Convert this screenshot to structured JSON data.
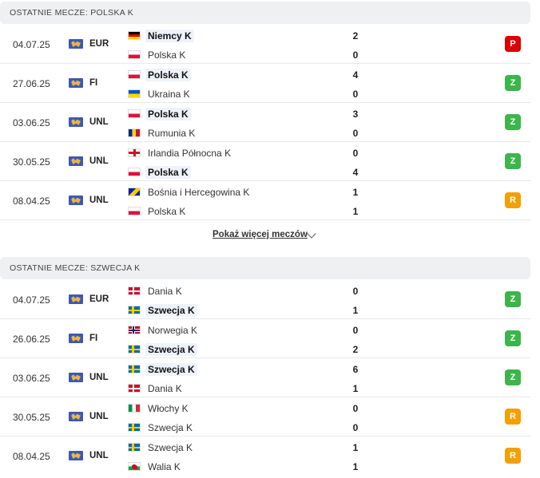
{
  "colors": {
    "loss": "#dc0000",
    "win": "#3cb54a",
    "draw": "#f3a000"
  },
  "sections": [
    {
      "title": "OSTATNIE MECZE: POLSKA K",
      "matches": [
        {
          "date": "04.07.25",
          "competition": "EUR",
          "home": {
            "name": "Niemcy K",
            "flag": "germany-flag-icon",
            "score": "2",
            "winner": true
          },
          "away": {
            "name": "Polska K",
            "flag": "poland-flag-icon",
            "score": "0",
            "winner": false
          },
          "result": "P",
          "result_type": "loss"
        },
        {
          "date": "27.06.25",
          "competition": "FI",
          "home": {
            "name": "Polska K",
            "flag": "poland-flag-icon",
            "score": "4",
            "winner": true
          },
          "away": {
            "name": "Ukraina K",
            "flag": "ukraine-flag-icon",
            "score": "0",
            "winner": false
          },
          "result": "Z",
          "result_type": "win"
        },
        {
          "date": "03.06.25",
          "competition": "UNL",
          "home": {
            "name": "Polska K",
            "flag": "poland-flag-icon",
            "score": "3",
            "winner": true
          },
          "away": {
            "name": "Rumunia K",
            "flag": "romania-flag-icon",
            "score": "0",
            "winner": false
          },
          "result": "Z",
          "result_type": "win"
        },
        {
          "date": "30.05.25",
          "competition": "UNL",
          "home": {
            "name": "Irlandia Północna K",
            "flag": "northern-ireland-flag-icon",
            "score": "0",
            "winner": false
          },
          "away": {
            "name": "Polska K",
            "flag": "poland-flag-icon",
            "score": "4",
            "winner": true
          },
          "result": "Z",
          "result_type": "win"
        },
        {
          "date": "08.04.25",
          "competition": "UNL",
          "home": {
            "name": "Bośnia i Hercegowina K",
            "flag": "bosnia-flag-icon",
            "score": "1",
            "winner": false
          },
          "away": {
            "name": "Polska K",
            "flag": "poland-flag-icon",
            "score": "1",
            "winner": false
          },
          "result": "R",
          "result_type": "draw"
        }
      ],
      "more_label": "Pokaż więcej meczów"
    },
    {
      "title": "OSTATNIE MECZE: SZWECJA K",
      "matches": [
        {
          "date": "04.07.25",
          "competition": "EUR",
          "home": {
            "name": "Dania K",
            "flag": "denmark-flag-icon",
            "score": "0",
            "winner": false
          },
          "away": {
            "name": "Szwecja K",
            "flag": "sweden-flag-icon",
            "score": "1",
            "winner": true
          },
          "result": "Z",
          "result_type": "win"
        },
        {
          "date": "26.06.25",
          "competition": "FI",
          "home": {
            "name": "Norwegia K",
            "flag": "norway-flag-icon",
            "score": "0",
            "winner": false
          },
          "away": {
            "name": "Szwecja K",
            "flag": "sweden-flag-icon",
            "score": "2",
            "winner": true
          },
          "result": "Z",
          "result_type": "win"
        },
        {
          "date": "03.06.25",
          "competition": "UNL",
          "home": {
            "name": "Szwecja K",
            "flag": "sweden-flag-icon",
            "score": "6",
            "winner": true
          },
          "away": {
            "name": "Dania K",
            "flag": "denmark-flag-icon",
            "score": "1",
            "winner": false
          },
          "result": "Z",
          "result_type": "win"
        },
        {
          "date": "30.05.25",
          "competition": "UNL",
          "home": {
            "name": "Włochy K",
            "flag": "italy-flag-icon",
            "score": "0",
            "winner": false
          },
          "away": {
            "name": "Szwecja K",
            "flag": "sweden-flag-icon",
            "score": "0",
            "winner": false
          },
          "result": "R",
          "result_type": "draw"
        },
        {
          "date": "08.04.25",
          "competition": "UNL",
          "home": {
            "name": "Szwecja K",
            "flag": "sweden-flag-icon",
            "score": "1",
            "winner": false
          },
          "away": {
            "name": "Walia K",
            "flag": "wales-flag-icon",
            "score": "1",
            "winner": false
          },
          "result": "R",
          "result_type": "draw"
        }
      ]
    }
  ]
}
